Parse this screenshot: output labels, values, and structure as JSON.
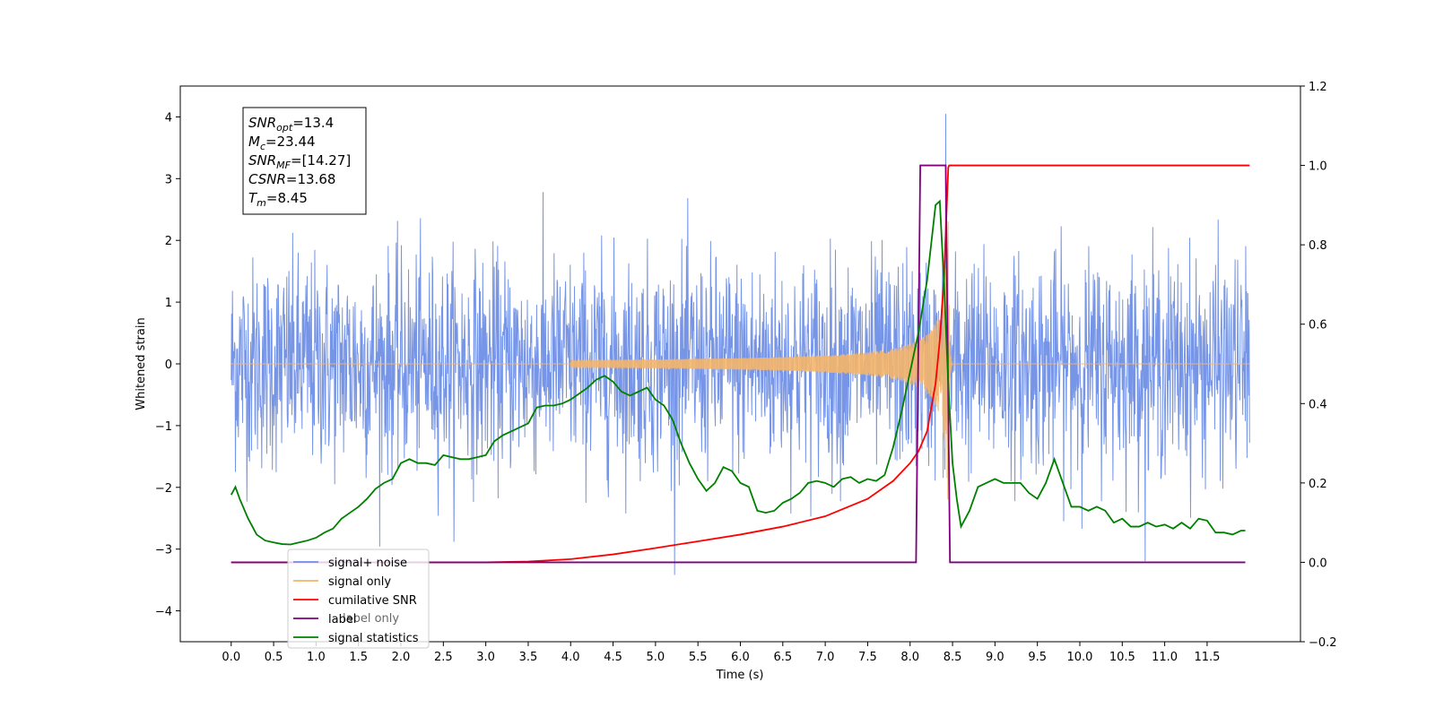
{
  "chart_data": {
    "type": "line",
    "xlabel": "Time (s)",
    "ylabel": "Whitened strain",
    "xlim": [
      -0.6,
      12.6
    ],
    "ylim": [
      -4.5,
      4.5
    ],
    "y2lim": [
      -0.2,
      1.2
    ],
    "x_ticks": [
      "0.0",
      "0.5",
      "1.0",
      "1.5",
      "2.0",
      "2.5",
      "3.0",
      "3.5",
      "4.0",
      "4.5",
      "5.0",
      "5.5",
      "6.0",
      "6.5",
      "7.0",
      "7.5",
      "8.0",
      "8.5",
      "9.0",
      "9.5",
      "10.0",
      "10.5",
      "11.0",
      "11.5"
    ],
    "y_ticks": [
      "4",
      "3",
      "2",
      "1",
      "0",
      "−1",
      "−2",
      "−3",
      "−4"
    ],
    "y2_ticks": [
      "1.2",
      "1.0",
      "0.8",
      "0.6",
      "0.4",
      "0.2",
      "0.0",
      "−0.2"
    ],
    "annotation": [
      {
        "sym": "SNR",
        "sub": "opt",
        "val": "=13.4"
      },
      {
        "sym": "M",
        "sub": "c",
        "val": "=23.44"
      },
      {
        "sym": "SNR",
        "sub": "MF",
        "val": "=[14.27]"
      },
      {
        "sym": "CSNR",
        "sub": "",
        "val": "=13.68"
      },
      {
        "sym": "T",
        "sub": "m",
        "val": "=8.45"
      }
    ],
    "legend": {
      "placement": "lower-left",
      "entries": [
        {
          "label": "signal+ noise",
          "color": "#6f8fe6"
        },
        {
          "label": "signal only",
          "color": "#f5b56a"
        },
        {
          "label": "cumilative SNR",
          "color": "#ff0000"
        },
        {
          "label": "label",
          "color": "#800080"
        },
        {
          "label": "signal statistics",
          "color": "#008000"
        }
      ],
      "hidden_text": "label only"
    },
    "series": [
      {
        "name": "signal+ noise",
        "axis": "left",
        "color": "#6f8fe6",
        "description_range": [
          -3.7,
          4.05
        ],
        "x_start": 0.0,
        "x_end": 12.0,
        "typical_amplitude": 1.7,
        "peak_x": 8.42,
        "peak_y": 4.05
      },
      {
        "name": "signal only",
        "axis": "left",
        "color": "#f5b56a",
        "x_start": 0.0,
        "x_end": 12.0,
        "chirp_start": 4.0,
        "merger_x": 8.45,
        "merger_amp": 2.6
      },
      {
        "name": "cumilative SNR",
        "axis": "right",
        "color": "#ff0000",
        "x": [
          0.0,
          2.5,
          3.0,
          3.5,
          4.0,
          4.5,
          5.0,
          5.5,
          6.0,
          6.5,
          7.0,
          7.5,
          7.8,
          8.0,
          8.1,
          8.2,
          8.3,
          8.35,
          8.4,
          8.45,
          8.46,
          12.0
        ],
        "values": [
          0.0,
          0.0,
          0.0,
          0.002,
          0.008,
          0.02,
          0.036,
          0.053,
          0.07,
          0.09,
          0.116,
          0.16,
          0.205,
          0.25,
          0.28,
          0.33,
          0.45,
          0.56,
          0.72,
          0.995,
          1.0,
          1.0
        ]
      },
      {
        "name": "label",
        "axis": "right",
        "color": "#800080",
        "x": [
          0.0,
          8.07,
          8.12,
          8.42,
          8.47,
          11.95
        ],
        "values": [
          0.0,
          0.0,
          1.0,
          1.0,
          0.0,
          0.0
        ]
      },
      {
        "name": "signal statistics",
        "axis": "right",
        "color": "#008000",
        "x": [
          0.0,
          0.05,
          0.1,
          0.2,
          0.3,
          0.4,
          0.5,
          0.6,
          0.7,
          0.8,
          0.9,
          1.0,
          1.1,
          1.2,
          1.3,
          1.4,
          1.5,
          1.6,
          1.7,
          1.8,
          1.9,
          2.0,
          2.1,
          2.2,
          2.3,
          2.4,
          2.5,
          2.6,
          2.7,
          2.8,
          2.9,
          3.0,
          3.1,
          3.2,
          3.3,
          3.4,
          3.5,
          3.6,
          3.7,
          3.8,
          3.9,
          4.0,
          4.1,
          4.2,
          4.3,
          4.4,
          4.5,
          4.6,
          4.7,
          4.8,
          4.9,
          5.0,
          5.1,
          5.2,
          5.3,
          5.4,
          5.5,
          5.6,
          5.7,
          5.8,
          5.9,
          6.0,
          6.1,
          6.2,
          6.3,
          6.4,
          6.5,
          6.6,
          6.7,
          6.8,
          6.9,
          7.0,
          7.1,
          7.2,
          7.3,
          7.4,
          7.5,
          7.6,
          7.7,
          7.8,
          7.9,
          8.0,
          8.1,
          8.2,
          8.3,
          8.35,
          8.4,
          8.45,
          8.5,
          8.55,
          8.6,
          8.7,
          8.8,
          8.9,
          9.0,
          9.1,
          9.2,
          9.3,
          9.4,
          9.5,
          9.6,
          9.7,
          9.8,
          9.9,
          10.0,
          10.1,
          10.2,
          10.3,
          10.4,
          10.5,
          10.6,
          10.7,
          10.8,
          10.9,
          11.0,
          11.1,
          11.2,
          11.3,
          11.4,
          11.5,
          11.6,
          11.7,
          11.8,
          11.9,
          11.95
        ],
        "values": [
          0.17,
          0.19,
          0.16,
          0.11,
          0.07,
          0.055,
          0.05,
          0.046,
          0.045,
          0.05,
          0.055,
          0.062,
          0.075,
          0.085,
          0.11,
          0.125,
          0.14,
          0.16,
          0.185,
          0.2,
          0.21,
          0.25,
          0.26,
          0.25,
          0.25,
          0.245,
          0.27,
          0.265,
          0.26,
          0.26,
          0.265,
          0.27,
          0.305,
          0.32,
          0.33,
          0.34,
          0.35,
          0.39,
          0.395,
          0.395,
          0.4,
          0.41,
          0.425,
          0.44,
          0.46,
          0.47,
          0.455,
          0.43,
          0.42,
          0.43,
          0.44,
          0.41,
          0.395,
          0.36,
          0.3,
          0.25,
          0.21,
          0.18,
          0.2,
          0.24,
          0.23,
          0.2,
          0.19,
          0.13,
          0.125,
          0.13,
          0.15,
          0.16,
          0.175,
          0.2,
          0.205,
          0.2,
          0.19,
          0.21,
          0.215,
          0.2,
          0.21,
          0.205,
          0.22,
          0.29,
          0.38,
          0.48,
          0.58,
          0.71,
          0.9,
          0.91,
          0.7,
          0.45,
          0.25,
          0.16,
          0.09,
          0.13,
          0.19,
          0.2,
          0.21,
          0.2,
          0.2,
          0.2,
          0.175,
          0.16,
          0.2,
          0.26,
          0.2,
          0.14,
          0.14,
          0.13,
          0.14,
          0.13,
          0.1,
          0.11,
          0.09,
          0.09,
          0.1,
          0.09,
          0.095,
          0.085,
          0.1,
          0.085,
          0.11,
          0.105,
          0.075,
          0.075,
          0.07,
          0.08,
          0.08
        ]
      }
    ]
  }
}
